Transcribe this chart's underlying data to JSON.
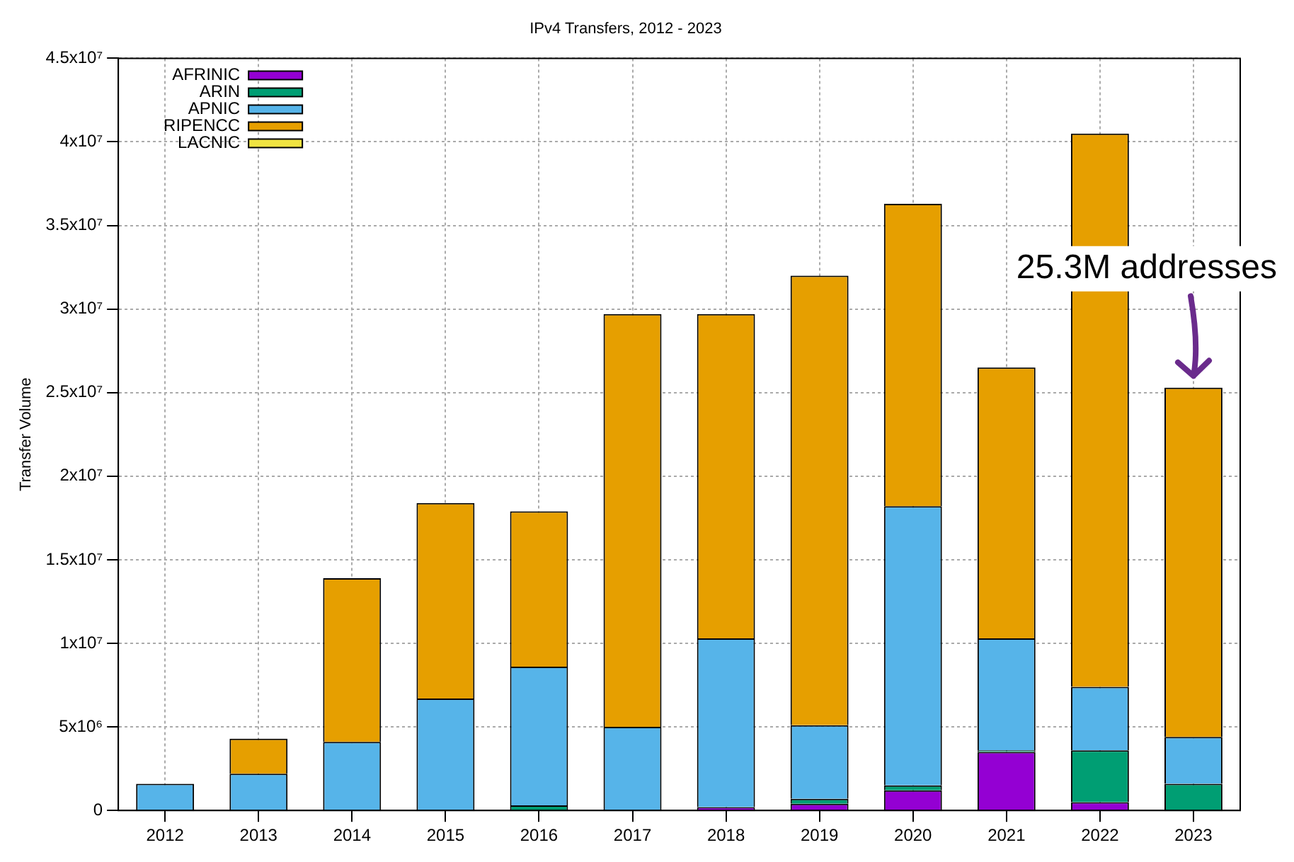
{
  "chart_data": {
    "type": "bar",
    "title": "IPv4 Transfers, 2012 - 2023",
    "ylabel": "Transfer Volume",
    "stacked": true,
    "legend": "top left",
    "grid": true,
    "categories": [
      "2012",
      "2013",
      "2014",
      "2015",
      "2016",
      "2017",
      "2018",
      "2019",
      "2020",
      "2021",
      "2022",
      "2023"
    ],
    "series": [
      {
        "name": "AFRINIC",
        "color": "#9400d3",
        "values": [
          0,
          0,
          0,
          0,
          0,
          0,
          200000,
          400000,
          1200000,
          3500000,
          500000,
          null
        ]
      },
      {
        "name": "ARIN",
        "color": "#009e73",
        "values": [
          0,
          0,
          0,
          0,
          300000,
          null,
          0,
          300000,
          300000,
          100000,
          3100000,
          1600000
        ]
      },
      {
        "name": "APNIC",
        "color": "#56b4e9",
        "values": [
          1600000,
          2200000,
          4100000,
          6700000,
          8300000,
          5000000,
          10100000,
          4400000,
          16700000,
          6700000,
          3800000,
          2800000
        ]
      },
      {
        "name": "RIPENCC",
        "color": "#e69f00",
        "values": [
          0,
          2100000,
          9800000,
          11700000,
          9300000,
          24700000,
          19400000,
          26900000,
          18100000,
          16200000,
          33100000,
          20900000
        ]
      },
      {
        "name": "LACNIC",
        "color": "#f0e442",
        "values": [
          0,
          0,
          0,
          0,
          0,
          0,
          0,
          0,
          0,
          0,
          0,
          0
        ]
      }
    ],
    "ylim": [
      0,
      45000000
    ],
    "yticks": [
      0,
      {
        "value": 5000000,
        "label": "5x10⁶"
      },
      {
        "value": 10000000,
        "label": "1x10⁷"
      },
      {
        "value": 15000000,
        "label": "1.5x10⁷"
      },
      {
        "value": 20000000,
        "label": "2x10⁷"
      },
      {
        "value": 25000000,
        "label": "2.5x10⁷"
      },
      {
        "value": 30000000,
        "label": "3x10⁷"
      },
      {
        "value": 35000000,
        "label": "3.5x10⁷"
      },
      {
        "value": 40000000,
        "label": "4x10⁷"
      },
      {
        "value": 45000000,
        "label": "4.5x10⁷"
      }
    ],
    "annotations": [
      {
        "text": "25.3M addresses",
        "x": "2023",
        "y": 25300000
      }
    ]
  }
}
